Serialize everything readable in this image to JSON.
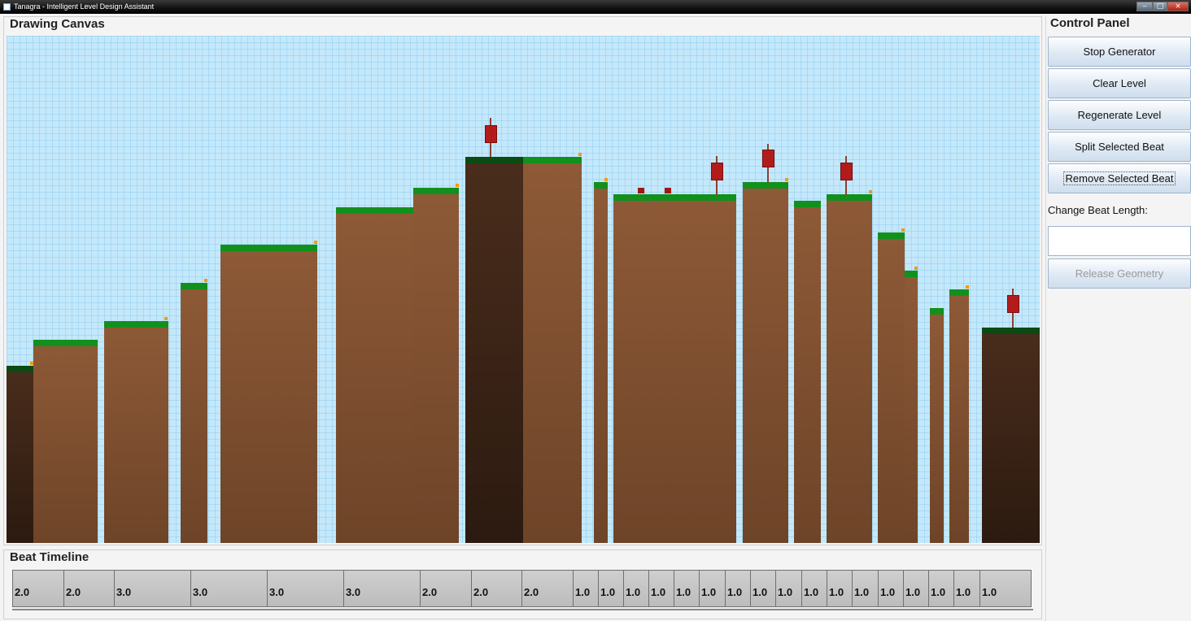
{
  "window": {
    "title": "Tanagra - Intelligent Level Design Assistant",
    "minimize": "‒",
    "maximize": "□",
    "close": "×"
  },
  "drawing_panel": {
    "title": "Drawing Canvas"
  },
  "timeline_panel": {
    "title": "Beat Timeline",
    "beats": [
      "2.0",
      "2.0",
      "3.0",
      "3.0",
      "3.0",
      "3.0",
      "2.0",
      "2.0",
      "2.0",
      "1.0",
      "1.0",
      "1.0",
      "1.0",
      "1.0",
      "1.0",
      "1.0",
      "1.0",
      "1.0",
      "1.0",
      "1.0",
      "1.0",
      "1.0",
      "1.0",
      "1.0",
      "1.0",
      "1.0",
      "2.0"
    ]
  },
  "control_panel": {
    "title": "Control Panel",
    "stop_generator": "Stop Generator",
    "clear_level": "Clear Level",
    "regenerate_level": "Regenerate Level",
    "split_selected_beat": "Split Selected Beat",
    "remove_selected_beat": "Remove Selected Beat",
    "change_beat_length_label": "Change Beat Length:",
    "beat_length_value": "",
    "release_geometry": "Release Geometry"
  },
  "colors": {
    "sky": "#c4e8fb",
    "ground": "#8e5a37",
    "selected_ground": "#3a2416",
    "grass": "#12901d",
    "enemy": "#b31b1b",
    "coin_spark": "#f09a18"
  }
}
